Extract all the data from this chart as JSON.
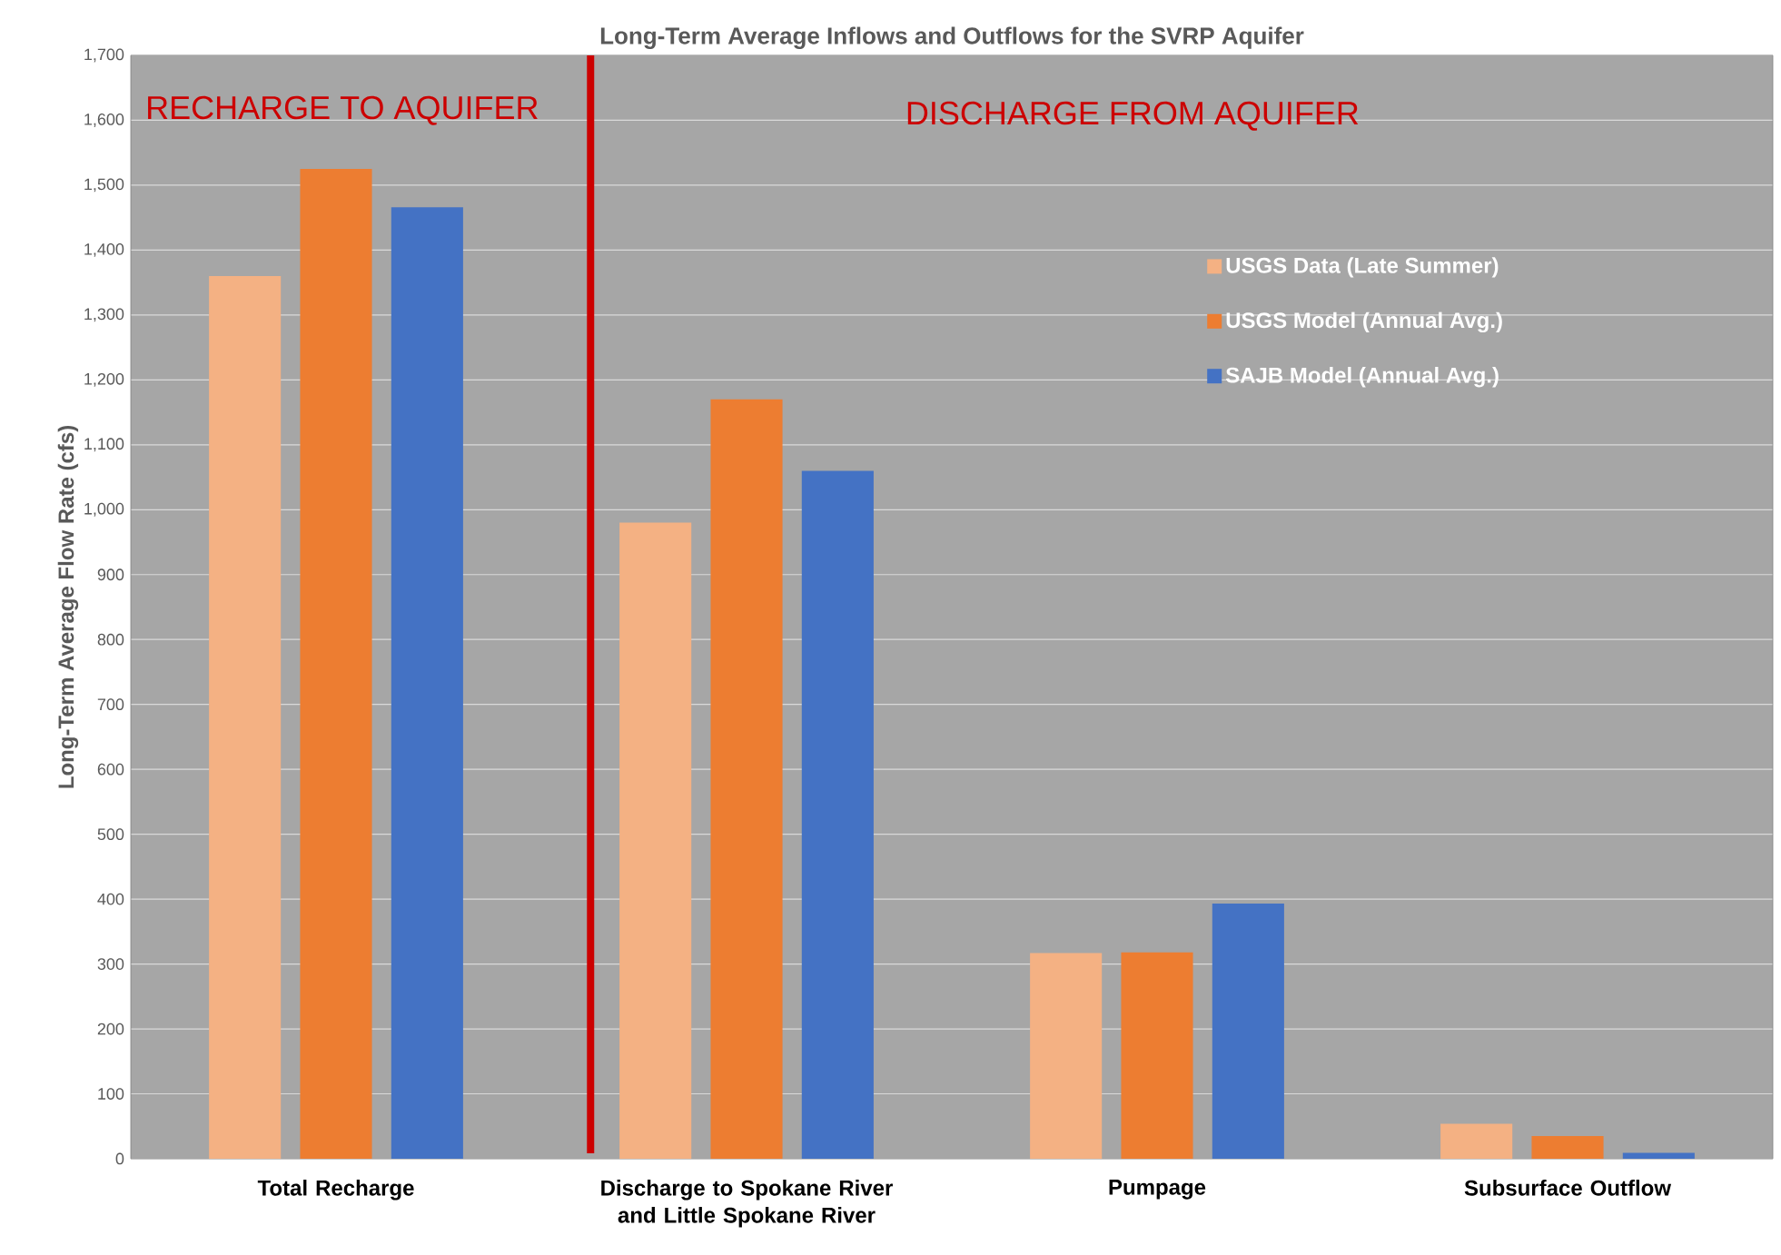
{
  "chart_data": {
    "type": "bar",
    "title": "Long-Term Average Inflows and Outflows for the SVRP Aquifer",
    "ylabel": "Long-Term Average Flow Rate (cfs)",
    "categories": [
      "Total Recharge",
      "Discharge to Spokane River and Little Spokane River",
      "Pumpage",
      "Subsurface Outflow"
    ],
    "series": [
      {
        "name": "USGS Data (Late Summer)",
        "color": "#f4b183",
        "values": [
          1360,
          980,
          317,
          54
        ]
      },
      {
        "name": "USGS Model (Annual Avg.)",
        "color": "#ed7d31",
        "values": [
          1525,
          1170,
          318,
          35
        ]
      },
      {
        "name": "SAJB Model (Annual Avg.)",
        "color": "#4472c4",
        "values": [
          1466,
          1060,
          393,
          9
        ]
      }
    ],
    "ylim": [
      0,
      1700
    ],
    "yticks": [
      0,
      100,
      200,
      300,
      400,
      500,
      600,
      700,
      800,
      900,
      {
        "value": 1000,
        "label": "1,000"
      },
      {
        "value": 1100,
        "label": "1,100"
      },
      {
        "value": 1200,
        "label": "1,200"
      },
      {
        "value": 1300,
        "label": "1,300"
      },
      {
        "value": 1400,
        "label": "1,400"
      },
      {
        "value": 1500,
        "label": "1,500"
      },
      {
        "value": 1600,
        "label": "1,600"
      },
      {
        "value": 1700,
        "label": "1,700"
      }
    ],
    "grid": "y",
    "legend": "top right",
    "annotations": [
      "RECHARGE TO AQUIFER",
      "DISCHARGE FROM AQUIFER"
    ]
  }
}
